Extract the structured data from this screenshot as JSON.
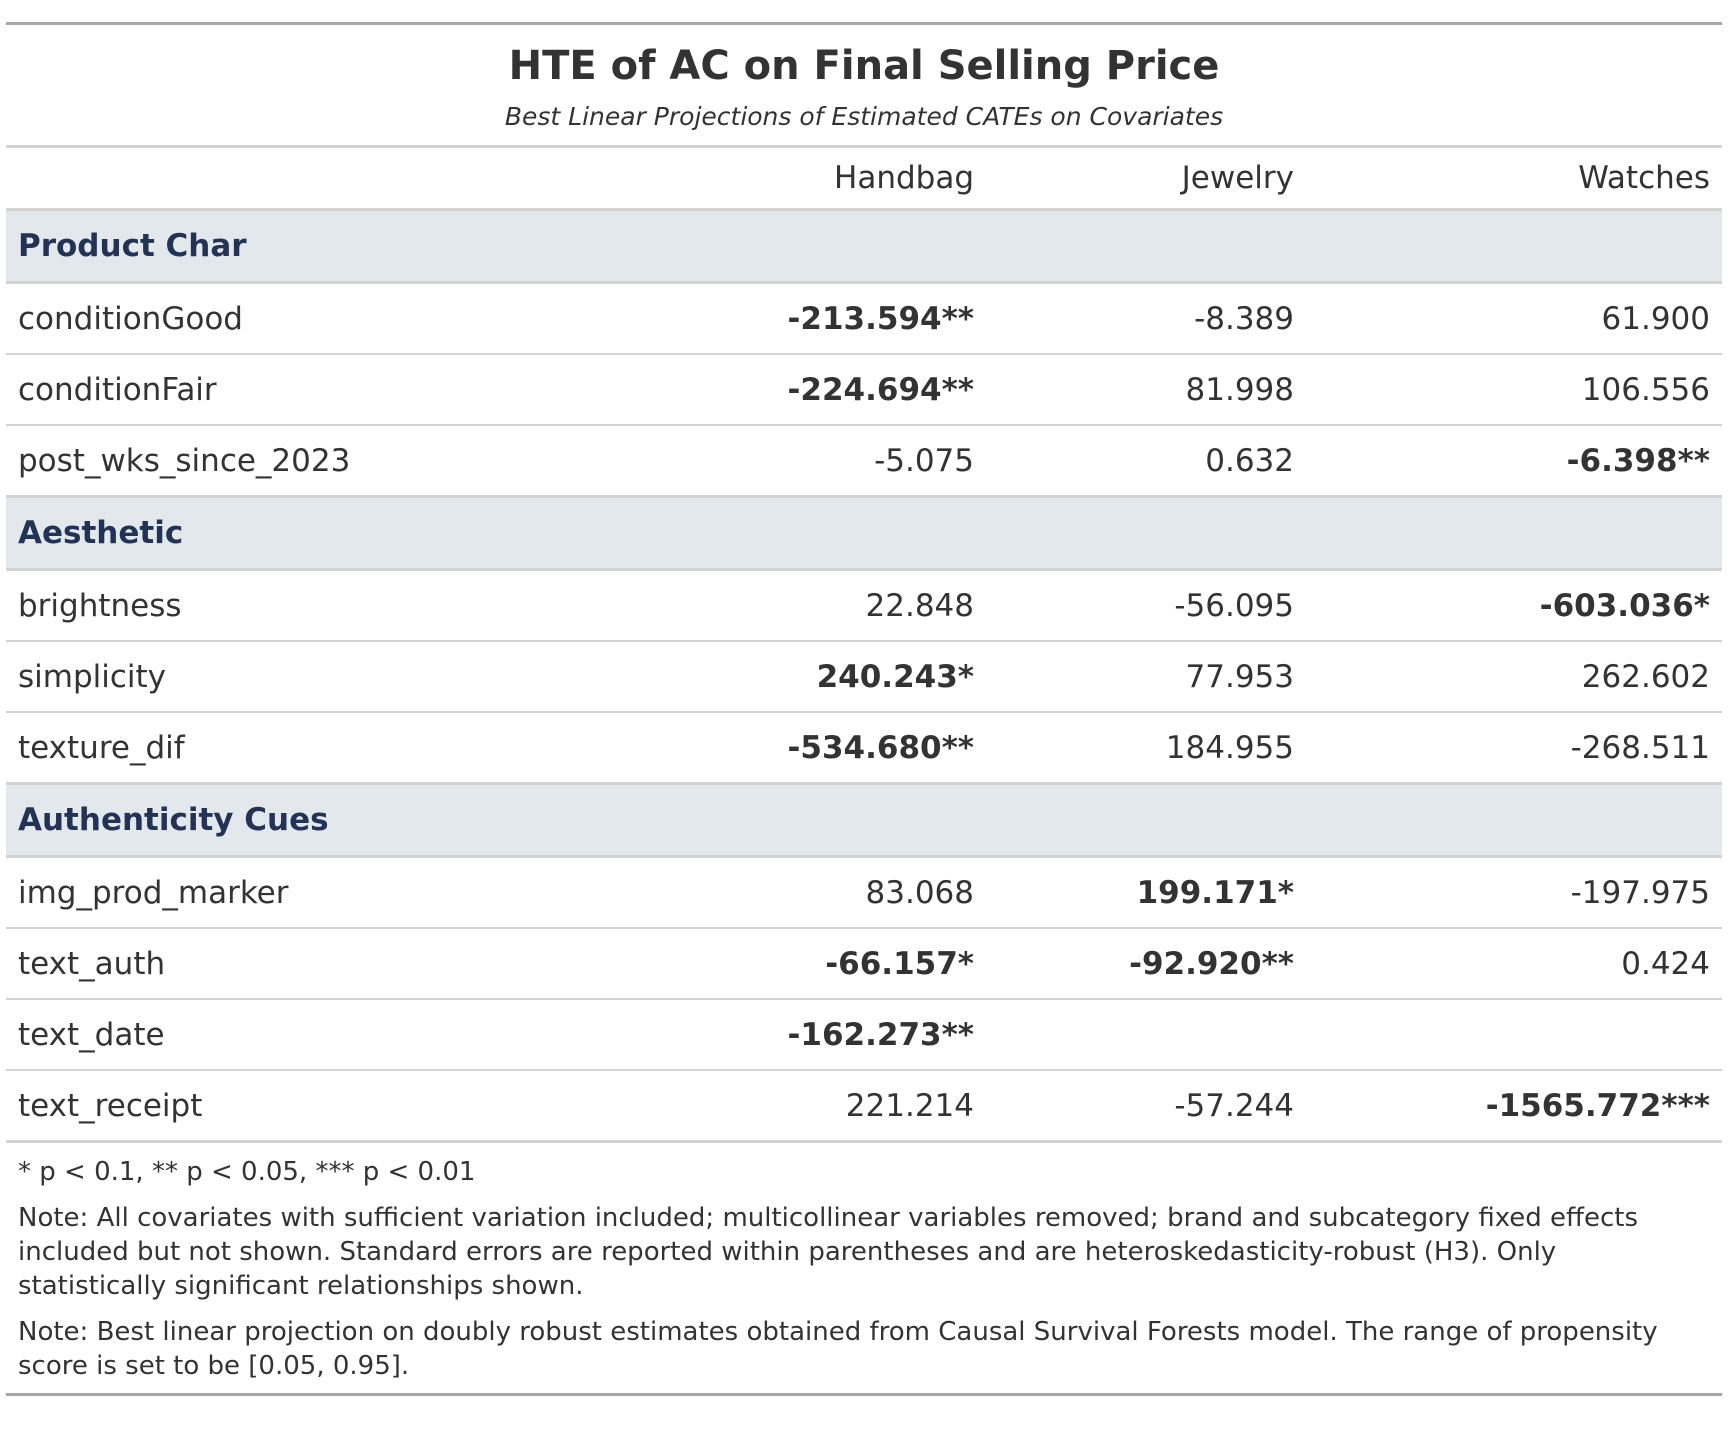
{
  "title": "HTE of AC on Final Selling Price",
  "subtitle": "Best Linear Projections of Estimated CATEs on Covariates",
  "columns": [
    "Handbag",
    "Jewelry",
    "Watches"
  ],
  "groups": [
    {
      "label": "Product Char",
      "rows": [
        {
          "label": "conditionGood",
          "cells": [
            {
              "text": "-213.594**",
              "bold": true
            },
            {
              "text": "-8.389",
              "bold": false
            },
            {
              "text": "61.900",
              "bold": false
            }
          ]
        },
        {
          "label": "conditionFair",
          "cells": [
            {
              "text": "-224.694**",
              "bold": true
            },
            {
              "text": "81.998",
              "bold": false
            },
            {
              "text": "106.556",
              "bold": false
            }
          ]
        },
        {
          "label": "post_wks_since_2023",
          "cells": [
            {
              "text": "-5.075",
              "bold": false
            },
            {
              "text": "0.632",
              "bold": false
            },
            {
              "text": "-6.398**",
              "bold": true
            }
          ]
        }
      ]
    },
    {
      "label": "Aesthetic",
      "rows": [
        {
          "label": "brightness",
          "cells": [
            {
              "text": "22.848",
              "bold": false
            },
            {
              "text": "-56.095",
              "bold": false
            },
            {
              "text": "-603.036*",
              "bold": true
            }
          ]
        },
        {
          "label": "simplicity",
          "cells": [
            {
              "text": "240.243*",
              "bold": true
            },
            {
              "text": "77.953",
              "bold": false
            },
            {
              "text": "262.602",
              "bold": false
            }
          ]
        },
        {
          "label": "texture_dif",
          "cells": [
            {
              "text": "-534.680**",
              "bold": true
            },
            {
              "text": "184.955",
              "bold": false
            },
            {
              "text": "-268.511",
              "bold": false
            }
          ]
        }
      ]
    },
    {
      "label": "Authenticity Cues",
      "rows": [
        {
          "label": "img_prod_marker",
          "cells": [
            {
              "text": "83.068",
              "bold": false
            },
            {
              "text": "199.171*",
              "bold": true
            },
            {
              "text": "-197.975",
              "bold": false
            }
          ]
        },
        {
          "label": "text_auth",
          "cells": [
            {
              "text": "-66.157*",
              "bold": true
            },
            {
              "text": "-92.920**",
              "bold": true
            },
            {
              "text": "0.424",
              "bold": false
            }
          ]
        },
        {
          "label": "text_date",
          "cells": [
            {
              "text": "-162.273**",
              "bold": true
            },
            {
              "text": "",
              "bold": false
            },
            {
              "text": "",
              "bold": false
            }
          ]
        },
        {
          "label": "text_receipt",
          "cells": [
            {
              "text": "221.214",
              "bold": false
            },
            {
              "text": "-57.244",
              "bold": false
            },
            {
              "text": "-1565.772***",
              "bold": true
            }
          ]
        }
      ]
    }
  ],
  "footnotes": [
    "* p < 0.1, ** p < 0.05, *** p < 0.01",
    "Note: All covariates with sufficient variation included; multicollinear variables removed; brand and subcategory fixed effects included but not shown. Standard errors are reported within parentheses and are heteroskedasticity-robust (H3). Only statistically significant relationships shown.",
    "Note: Best linear projection on doubly robust estimates obtained from Causal Survival Forests model. The range of propensity score is set to be [0.05, 0.95]."
  ],
  "colors": {
    "group_background": "#e3e8ed",
    "group_text": "#223356",
    "text": "#333333",
    "rule": "#d3d3d3"
  }
}
